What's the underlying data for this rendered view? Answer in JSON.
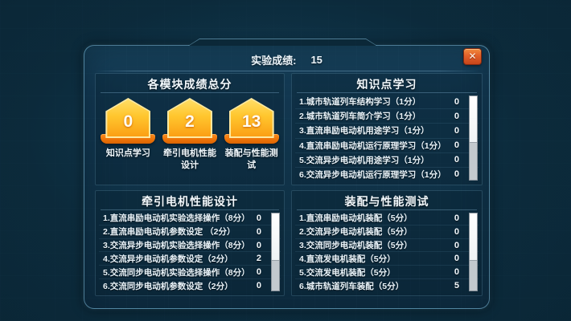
{
  "header": {
    "score_label": "实验成绩:",
    "score_value": "15",
    "close_glyph": "✕"
  },
  "summary": {
    "title": "各模块成绩总分",
    "badges": [
      {
        "score": "0",
        "label": "知识点学习"
      },
      {
        "score": "2",
        "label": "牵引电机性能设计"
      },
      {
        "score": "13",
        "label": "装配与性能测试"
      }
    ]
  },
  "sections": [
    {
      "title": "知识点学习",
      "items": [
        {
          "label": "1.城市轨道列车结构学习（1分）",
          "score": "0"
        },
        {
          "label": "2.城市轨道列车简介学习（1分）",
          "score": "0"
        },
        {
          "label": "3.直流串励电动机用途学习（1分）",
          "score": "0"
        },
        {
          "label": "4.直流串励电动机运行原理学习（1分）",
          "score": "0"
        },
        {
          "label": "5.交流异步电动机用途学习（1分）",
          "score": "0"
        },
        {
          "label": "6.交流异步电动机运行原理学习（1分）",
          "score": "0"
        }
      ]
    },
    {
      "title": "牵引电机性能设计",
      "items": [
        {
          "label": "1.直流串励电动机实验选择操作（8分）",
          "score": "0"
        },
        {
          "label": "2.直流串励电动机参数设定 （2分）",
          "score": "0"
        },
        {
          "label": "3.交流异步电动机实验选择操作（8分）",
          "score": "0"
        },
        {
          "label": "4.交流异步电动机参数设定（2分）",
          "score": "2"
        },
        {
          "label": "5.交流同步电动机实验选择操作（8分）",
          "score": "0"
        },
        {
          "label": "6.交流同步电动机参数设定（2分）",
          "score": "0"
        }
      ]
    },
    {
      "title": "装配与性能测试",
      "items": [
        {
          "label": "1.直流串励电动机装配（5分）",
          "score": "0"
        },
        {
          "label": "2.交流异步电动机装配（5分）",
          "score": "0"
        },
        {
          "label": "3.交流同步电动机装配（5分）",
          "score": "0"
        },
        {
          "label": "4.直流发电机装配（5分）",
          "score": "0"
        },
        {
          "label": "5.交流发电机装配（5分）",
          "score": "0"
        },
        {
          "label": "6.城市轨道列车装配（5分）",
          "score": "5"
        }
      ]
    }
  ],
  "colors": {
    "background": "#0a2534",
    "panel": "#113348",
    "panel_border": "#82bedA",
    "badge_top": "#ffdd66",
    "badge_bottom": "#fb9f14",
    "ribbon": "#ee7408",
    "close_button": "#e1602a",
    "text": "#eef6fb"
  }
}
